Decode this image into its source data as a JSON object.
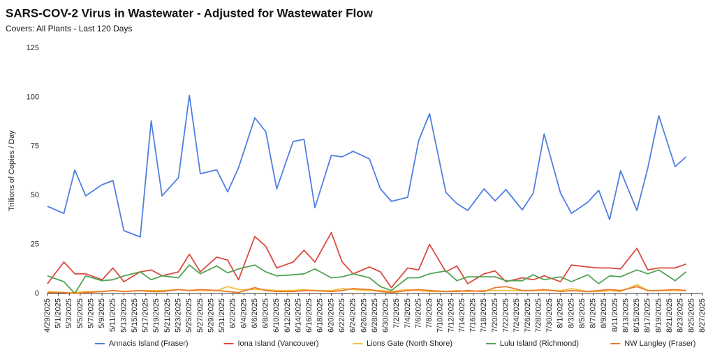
{
  "chart_data": {
    "type": "line",
    "title": "SARS-COV-2 Virus in Wastewater - Adjusted for Wastewater Flow",
    "subtitle": "Covers: All Plants - Last 120 Days",
    "y_label": "Trillions of Copies / Day",
    "x": [
      "4/29/2025",
      "5/2/2025",
      "5/4/2025",
      "5/6/2025",
      "5/9/2025",
      "5/11/2025",
      "5/13/2025",
      "5/16/2025",
      "5/18/2025",
      "5/20/2025",
      "5/23/2025",
      "5/25/2025",
      "5/27/2025",
      "5/30/2025",
      "6/1/2025",
      "6/3/2025",
      "6/6/2025",
      "6/8/2025",
      "6/10/2025",
      "6/13/2025",
      "6/15/2025",
      "6/17/2025",
      "6/20/2025",
      "6/22/2025",
      "6/24/2025",
      "6/27/2025",
      "6/29/2025",
      "7/1/2025",
      "7/4/2025",
      "7/6/2025",
      "7/8/2025",
      "7/11/2025",
      "7/13/2025",
      "7/15/2025",
      "7/18/2025",
      "7/20/2025",
      "7/22/2025",
      "7/25/2025",
      "7/27/2025",
      "7/29/2025",
      "8/1/2025",
      "8/3/2025",
      "8/6/2025",
      "8/8/2025",
      "8/10/2025",
      "8/12/2025",
      "8/15/2025",
      "8/17/2025",
      "8/19/2025",
      "8/22/2025",
      "8/24/2025"
    ],
    "series": [
      {
        "name": "Annacis Island (Fraser)",
        "color": "#4f7fe3",
        "values": [
          44.4,
          40.8,
          62.9,
          49.7,
          55.4,
          57.5,
          32,
          28.8,
          88,
          49.7,
          59,
          101,
          61,
          63,
          51.8,
          64,
          89.5,
          82.4,
          53.3,
          77.4,
          78.5,
          43.7,
          70.3,
          69.6,
          72.4,
          68.5,
          53.3,
          46.9,
          49,
          77.8,
          91.6,
          51.5,
          45.8,
          42.3,
          53.3,
          47.2,
          52.9,
          42.6,
          51.1,
          81.3,
          51.1,
          40.8,
          46.5,
          52.6,
          37.6,
          62.5,
          42.3,
          64,
          90.6,
          64.6,
          69.6
        ]
      },
      {
        "name": "Iona Island (Vancouver)",
        "color": "#db4b3f",
        "values": [
          5,
          16,
          10,
          10,
          7,
          13,
          6,
          11,
          12,
          9,
          11,
          20,
          11,
          18.5,
          17,
          7,
          29,
          24,
          13,
          16,
          22,
          16,
          31,
          16,
          10,
          13.5,
          11,
          3,
          13,
          12,
          25,
          11,
          14,
          5,
          10,
          11.5,
          6,
          8,
          7,
          9,
          6,
          14.5,
          13.5,
          13,
          13,
          12.5,
          23,
          12,
          13,
          13,
          15
        ]
      },
      {
        "name": "Lions Gate (North Shore)",
        "color": "#f4bf3f",
        "values": [
          1,
          0.5,
          0.5,
          1,
          1,
          1.5,
          1,
          1.5,
          1.5,
          1.5,
          2,
          1.5,
          1.5,
          1.5,
          3.5,
          2,
          2,
          2,
          1.5,
          1.5,
          2,
          1.5,
          1.5,
          2.5,
          2,
          1.5,
          1.5,
          1,
          2,
          1.5,
          1,
          1,
          1.5,
          1,
          1.5,
          1.5,
          1.5,
          1.5,
          1.5,
          1.5,
          1.5,
          2.5,
          1,
          1,
          1.5,
          1,
          4.5,
          1.5,
          1.5,
          1.5,
          1.5
        ]
      },
      {
        "name": "Lulu Island (Richmond)",
        "color": "#52a356",
        "values": [
          9,
          6,
          0,
          9,
          6.5,
          7,
          9,
          11,
          7,
          9,
          8,
          14.5,
          10,
          14,
          10.5,
          12.5,
          14.5,
          11,
          9,
          9.5,
          10,
          12.5,
          8,
          8.5,
          10,
          8,
          3.5,
          1.5,
          8,
          8,
          10,
          11.5,
          6.5,
          8.5,
          8.5,
          8.5,
          6.5,
          6.5,
          9.5,
          7,
          8.5,
          6,
          9.5,
          5,
          9,
          8.5,
          12,
          10,
          12,
          6.5,
          11
        ]
      },
      {
        "name": "NW Langley (Fraser)",
        "color": "#ec7a30",
        "values": [
          0.5,
          0.5,
          0,
          0.5,
          1,
          1.5,
          1,
          1.5,
          1,
          1,
          2,
          1.5,
          2,
          1.5,
          1,
          0.5,
          3,
          1.5,
          1,
          1,
          1.5,
          1.5,
          1,
          1.5,
          2.5,
          2,
          1,
          0.5,
          1.5,
          2,
          1.5,
          1,
          1,
          1.5,
          1,
          3,
          3.5,
          1.5,
          1.5,
          2,
          1,
          1.5,
          1,
          1.5,
          2,
          1.5,
          3.5,
          1.5,
          1.5,
          2,
          1.5
        ]
      }
    ],
    "xlim": [
      "4/29/2025",
      "8/27/2025"
    ],
    "xticks": [
      "4/29/2025",
      "5/1/2025",
      "5/3/2025",
      "5/5/2025",
      "5/7/2025",
      "5/9/2025",
      "5/11/2025",
      "5/13/2025",
      "5/15/2025",
      "5/17/2025",
      "5/19/2025",
      "5/21/2025",
      "5/23/2025",
      "5/25/2025",
      "5/27/2025",
      "5/29/2025",
      "5/31/2025",
      "6/2/2025",
      "6/4/2025",
      "6/6/2025",
      "6/8/2025",
      "6/10/2025",
      "6/12/2025",
      "6/14/2025",
      "6/16/2025",
      "6/18/2025",
      "6/20/2025",
      "6/22/2025",
      "6/24/2025",
      "6/26/2025",
      "6/28/2025",
      "6/30/2025",
      "7/2/2025",
      "7/4/2025",
      "7/6/2025",
      "7/8/2025",
      "7/10/2025",
      "7/12/2025",
      "7/14/2025",
      "7/16/2025",
      "7/18/2025",
      "7/20/2025",
      "7/22/2025",
      "7/24/2025",
      "7/26/2025",
      "7/28/2025",
      "7/30/2025",
      "8/1/2025",
      "8/3/2025",
      "8/5/2025",
      "8/7/2025",
      "8/9/2025",
      "8/11/2025",
      "8/13/2025",
      "8/15/2025",
      "8/17/2025",
      "8/19/2025",
      "8/21/2025",
      "8/23/2025",
      "8/25/2025",
      "8/27/2025"
    ],
    "ylim": [
      0,
      125
    ],
    "yticks": [
      0,
      25,
      50,
      75,
      100,
      125
    ],
    "grid": false,
    "legend": "bottom"
  }
}
